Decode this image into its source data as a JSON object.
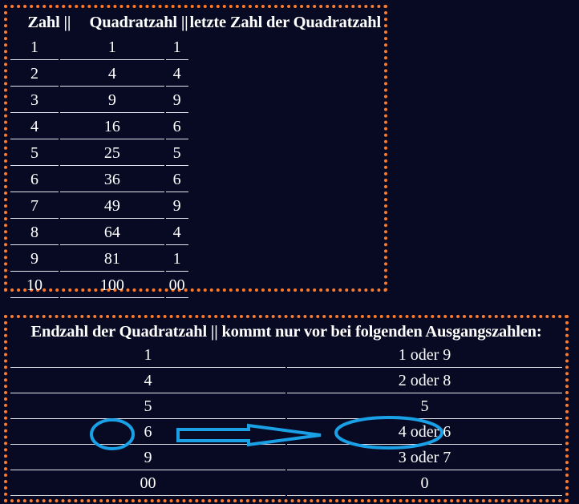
{
  "table1": {
    "headers": [
      "Zahl",
      "||",
      "Quadratzahl",
      "||",
      "letzte Zahl der Quadratzahl"
    ],
    "rows": [
      [
        "1",
        "1",
        "1"
      ],
      [
        "2",
        "4",
        "4"
      ],
      [
        "3",
        "9",
        "9"
      ],
      [
        "4",
        "16",
        "6"
      ],
      [
        "5",
        "25",
        "5"
      ],
      [
        "6",
        "36",
        "6"
      ],
      [
        "7",
        "49",
        "9"
      ],
      [
        "8",
        "64",
        "4"
      ],
      [
        "9",
        "81",
        "1"
      ],
      [
        "10",
        "100",
        "00"
      ]
    ]
  },
  "table2": {
    "headers": [
      "Endzahl der Quadratzahl",
      "||",
      "kommt nur vor bei folgenden Ausgangszahlen:"
    ],
    "rows": [
      [
        "1",
        "1 oder 9"
      ],
      [
        "4",
        "2 oder 8"
      ],
      [
        "5",
        "5"
      ],
      [
        "6",
        "4 oder 6"
      ],
      [
        "9",
        "3 oder 7"
      ],
      [
        "00",
        "0"
      ]
    ]
  },
  "colors": {
    "background": "#070a22",
    "frame_border": "#ff7a2a",
    "highlight": "#1aa0e6",
    "text": "#ffffff"
  }
}
